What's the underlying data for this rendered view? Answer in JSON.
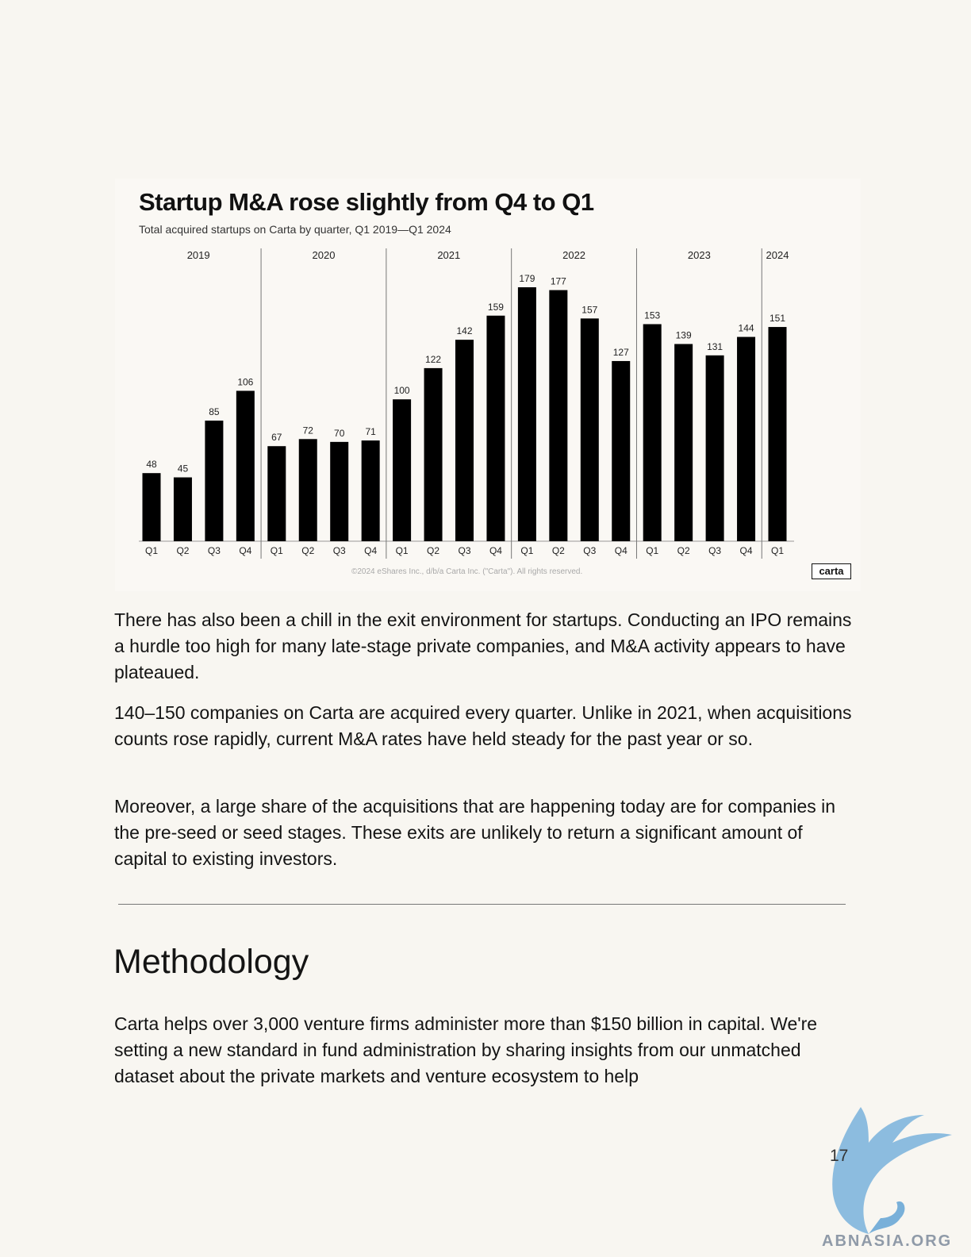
{
  "chart_data": {
    "type": "bar",
    "title": "Startup M&A rose slightly from Q4 to Q1",
    "subtitle": "Total acquired startups on Carta by quarter, Q1 2019—Q1 2024",
    "years": [
      {
        "label": "2019",
        "quarters": 4
      },
      {
        "label": "2020",
        "quarters": 4
      },
      {
        "label": "2021",
        "quarters": 4
      },
      {
        "label": "2022",
        "quarters": 4
      },
      {
        "label": "2023",
        "quarters": 4
      },
      {
        "label": "2024",
        "quarters": 1
      }
    ],
    "categories": [
      "Q1",
      "Q2",
      "Q3",
      "Q4",
      "Q1",
      "Q2",
      "Q3",
      "Q4",
      "Q1",
      "Q2",
      "Q3",
      "Q4",
      "Q1",
      "Q2",
      "Q3",
      "Q4",
      "Q1",
      "Q2",
      "Q3",
      "Q4",
      "Q1"
    ],
    "values": [
      48,
      45,
      85,
      106,
      67,
      72,
      70,
      71,
      100,
      122,
      142,
      159,
      179,
      177,
      157,
      127,
      153,
      139,
      131,
      144,
      151
    ],
    "ylim": [
      0,
      190
    ],
    "grid": false,
    "bar_color": "#000000",
    "copyright": "©2024 eShares Inc., d/b/a Carta Inc. (\"Carta\"). All rights reserved.",
    "logo_text": "carta"
  },
  "paragraphs": [
    "There has also been a chill in the exit environment for startups. Conducting an IPO remains a hurdle too high for many late-stage private companies, and M&A activity appears to have plateaued.",
    "140–150 companies on Carta are acquired every quarter. Unlike in 2021, when acquisitions counts rose rapidly, current M&A rates have held steady for the past year or so.",
    "Moreover, a large share of the acquisitions that are happening today are for companies in the pre-seed or seed stages. These exits are unlikely to return a significant amount of capital to existing investors."
  ],
  "methodology": {
    "heading": "Methodology",
    "text": "Carta helps over 3,000 venture firms administer more than $150 billion in capital. We're setting a new standard in fund administration by sharing insights from our unmatched dataset about the private markets and venture ecosystem to help"
  },
  "page_number": "17",
  "watermark": {
    "text": "ABNASIA.ORG",
    "color": "#7fb6dd"
  }
}
